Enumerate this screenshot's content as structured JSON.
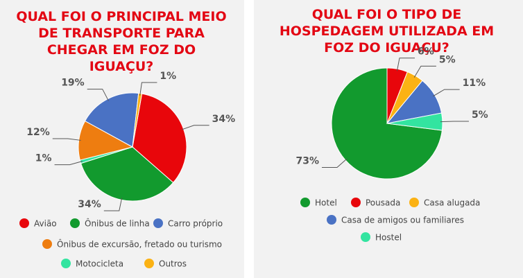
{
  "chart_data": [
    {
      "type": "pie",
      "title": "QUAL FOI O PRINCIPAL MEIO DE TRANSPORTE PARA CHEGAR EM FOZ DO IGUAÇU?",
      "categories": [
        "Avião",
        "Ônibus de linha",
        "Motocicleta",
        "Ônibus de excursão, fretado ou turismo",
        "Carro próprio",
        "Outros"
      ],
      "values": [
        34,
        34,
        1,
        12,
        19,
        1
      ],
      "value_labels": [
        "34%",
        "34%",
        "1%",
        "12%",
        "19%",
        "1%"
      ],
      "colors": [
        "#e8060b",
        "#129a2e",
        "#33e4a0",
        "#ee7d10",
        "#4a72c4",
        "#fbb214"
      ]
    },
    {
      "type": "pie",
      "title": "QUAL FOI O TIPO DE HOSPEDAGEM UTILIZADA EM FOZ DO IGUAÇU?",
      "categories": [
        "Hotel",
        "Pousada",
        "Casa alugada",
        "Casa de amigos ou familiares",
        "Hostel"
      ],
      "values": [
        73,
        6,
        5,
        11,
        5
      ],
      "value_labels": [
        "73%",
        "6%",
        "5%",
        "11%",
        "5%"
      ],
      "colors": [
        "#129a2e",
        "#e8060b",
        "#fbb214",
        "#4a72c4",
        "#33e4a0"
      ]
    }
  ]
}
